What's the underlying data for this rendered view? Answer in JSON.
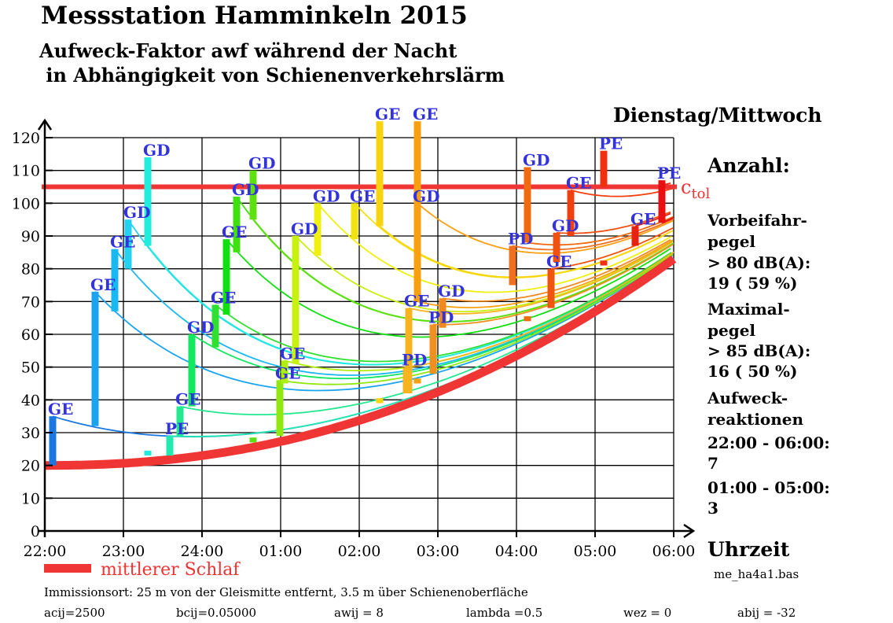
{
  "header": {
    "title": "Messstation Hamminkeln 2015",
    "subtitle1": "Aufweck-Faktor awf  während der Nacht",
    "subtitle2": " in Abhängigkeit von Schienenverkehrslärm",
    "day": "Dienstag/Mittwoch"
  },
  "side": {
    "heading": "Anzahl:",
    "lines": [
      "Vorbeifahr-",
      "pegel",
      "> 80 dB(A):",
      "19   ( 59  %)",
      "Maximal-",
      "pegel",
      "> 85 dB(A):",
      "16   ( 50  %)",
      "Aufweck-",
      "reaktionen",
      "22:00 - 06:00:",
      "7",
      "01:00 - 05:00:",
      "3"
    ]
  },
  "footer": {
    "legend": "mittlerer Schlaf",
    "file": "me_ha4a1.bas",
    "location": "Immissionsort: 25 m von der Gleismitte entfernt, 3.5 m über Schienenoberfläche",
    "params": [
      "acij=2500",
      "bcij=0.05000",
      "awij = 8",
      "lambda =0.5",
      "wez = 0",
      "abij = -32"
    ]
  },
  "colors": {
    "baseline": "#f03535",
    "tolerance": "#f03535",
    "label": "#3333dd"
  },
  "chart_data": {
    "type": "line",
    "title": "Aufweck-Faktor awf",
    "xlabel": "Uhrzeit",
    "ylabel": "",
    "xticks": [
      "22:00",
      "23:00",
      "24:00",
      "01:00",
      "02:00",
      "03:00",
      "04:00",
      "05:00",
      "06:00"
    ],
    "yticks": [
      0,
      10,
      20,
      30,
      40,
      50,
      60,
      70,
      80,
      90,
      100,
      110,
      120
    ],
    "xlim_hours_after_22": [
      0,
      8
    ],
    "ylim": [
      0,
      120
    ],
    "grid": true,
    "tolerance": {
      "label": "c",
      "sub": "tol",
      "value": 105
    },
    "baseline": {
      "name": "mittlerer Schlaf",
      "start": 20,
      "end": 83
    },
    "decay_hours": 2,
    "events": [
      {
        "t": 0.1,
        "low": 20,
        "high": 35,
        "label": "GE",
        "color": "#1a78e0"
      },
      {
        "t": 0.64,
        "low": 32,
        "high": 73,
        "label": "GE",
        "color": "#1aa4f0"
      },
      {
        "t": 0.89,
        "low": 67,
        "high": 86,
        "label": "GE",
        "color": "#1ab8f0"
      },
      {
        "t": 1.06,
        "low": 80,
        "high": 95,
        "label": "GD",
        "color": "#22d2f0"
      },
      {
        "t": 1.31,
        "low": 87,
        "high": 114,
        "label": "GD",
        "color": "#22ecdc"
      },
      {
        "t": 1.31,
        "low": 23,
        "high": 24.5,
        "label": "",
        "color": "#22ecdc"
      },
      {
        "t": 1.59,
        "low": 23,
        "high": 29,
        "label": "PE",
        "color": "#22eab0"
      },
      {
        "t": 1.72,
        "low": 29,
        "high": 38,
        "label": "GE",
        "color": "#22e890"
      },
      {
        "t": 1.87,
        "low": 38,
        "high": 60,
        "label": "GD",
        "color": "#12e860"
      },
      {
        "t": 2.17,
        "low": 56,
        "high": 69,
        "label": "GE",
        "color": "#30e030"
      },
      {
        "t": 2.31,
        "low": 66,
        "high": 89,
        "label": "GE",
        "color": "#10e010"
      },
      {
        "t": 2.44,
        "low": 85,
        "high": 102,
        "label": "GD",
        "color": "#40e010"
      },
      {
        "t": 2.65,
        "low": 95,
        "high": 110,
        "label": "GD",
        "color": "#60e010"
      },
      {
        "t": 2.65,
        "low": 27,
        "high": 28.5,
        "label": "",
        "color": "#60e010"
      },
      {
        "t": 2.99,
        "low": 29,
        "high": 46,
        "label": "GE",
        "color": "#90e810"
      },
      {
        "t": 3.05,
        "low": 45,
        "high": 52,
        "label": "GE",
        "color": "#b0ee10"
      },
      {
        "t": 3.19,
        "low": 51,
        "high": 90,
        "label": "GD",
        "color": "#c8f010"
      },
      {
        "t": 3.47,
        "low": 84,
        "high": 100,
        "label": "GD",
        "color": "#f0f010"
      },
      {
        "t": 3.94,
        "low": 89,
        "high": 100,
        "label": "GE",
        "color": "#f0e410"
      },
      {
        "t": 4.26,
        "low": 93,
        "high": 125,
        "label": "GE",
        "color": "#f8d410"
      },
      {
        "t": 4.26,
        "low": 39,
        "high": 40.5,
        "label": "",
        "color": "#f8d410"
      },
      {
        "t": 4.63,
        "low": 42,
        "high": 68,
        "label": "GE",
        "color": "#f8b420"
      },
      {
        "t": 4.6,
        "low": 42,
        "high": 50,
        "label": "PD",
        "color": "#f8b420"
      },
      {
        "t": 4.74,
        "low": 70,
        "high": 125,
        "label": "GE",
        "color": "#f8a010"
      },
      {
        "t": 4.74,
        "low": 100,
        "high": 100,
        "label": "GD",
        "color": "#f8a010"
      },
      {
        "t": 4.74,
        "low": 45,
        "high": 46.5,
        "label": "",
        "color": "#f8a010"
      },
      {
        "t": 4.94,
        "low": 48,
        "high": 63,
        "label": "PD",
        "color": "#f09020"
      },
      {
        "t": 5.06,
        "low": 62,
        "high": 71,
        "label": "GD",
        "color": "#f08a20"
      },
      {
        "t": 5.95,
        "low": 75,
        "high": 87,
        "label": "PD",
        "color": "#f07020"
      },
      {
        "t": 6.14,
        "low": 88,
        "high": 111,
        "label": "GD",
        "color": "#f06a10"
      },
      {
        "t": 6.14,
        "low": 64,
        "high": 65.5,
        "label": "",
        "color": "#f06a10"
      },
      {
        "t": 6.44,
        "low": 68,
        "high": 80,
        "label": "GE",
        "color": "#f05510"
      },
      {
        "t": 6.51,
        "low": 82,
        "high": 91,
        "label": "GD",
        "color": "#f05010"
      },
      {
        "t": 6.69,
        "low": 90,
        "high": 104,
        "label": "GE",
        "color": "#f04010"
      },
      {
        "t": 7.11,
        "low": 105,
        "high": 116,
        "label": "PE",
        "color": "#f03010"
      },
      {
        "t": 7.11,
        "low": 81,
        "high": 82.5,
        "label": "",
        "color": "#f03010"
      },
      {
        "t": 7.51,
        "low": 87,
        "high": 93,
        "label": "GE",
        "color": "#e82010"
      },
      {
        "t": 7.85,
        "low": 94,
        "high": 107,
        "label": "PE",
        "color": "#e81010"
      }
    ]
  }
}
